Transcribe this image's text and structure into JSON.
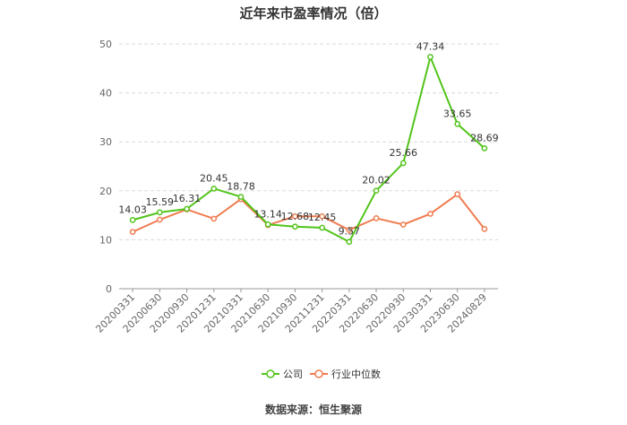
{
  "chart_data": {
    "type": "line",
    "title": "近年来市盈率情况（倍）",
    "categories": [
      "20200331",
      "20200630",
      "20200930",
      "20201231",
      "20210331",
      "20210630",
      "20210930",
      "20211231",
      "20220331",
      "20220630",
      "20220930",
      "20230331",
      "20230630",
      "20240829"
    ],
    "series": [
      {
        "name": "公司",
        "color": "#52c41a",
        "values": [
          14.03,
          15.59,
          16.31,
          20.45,
          18.78,
          13.14,
          12.68,
          12.45,
          9.57,
          20.02,
          25.66,
          47.34,
          33.65,
          28.69
        ],
        "show_labels": true
      },
      {
        "name": "行业中位数",
        "color": "#f07c50",
        "values": [
          11.6,
          14.1,
          16.2,
          14.3,
          18.3,
          13.0,
          14.8,
          14.8,
          12.0,
          14.4,
          13.1,
          15.3,
          19.3,
          12.2
        ],
        "show_labels": false
      }
    ],
    "yticks": [
      0,
      10,
      20,
      30,
      40,
      50
    ],
    "ylim": [
      0,
      50
    ],
    "grid": "horizontal-dashed",
    "legend_position": "bottom-center"
  },
  "source": "数据来源：恒生聚源"
}
